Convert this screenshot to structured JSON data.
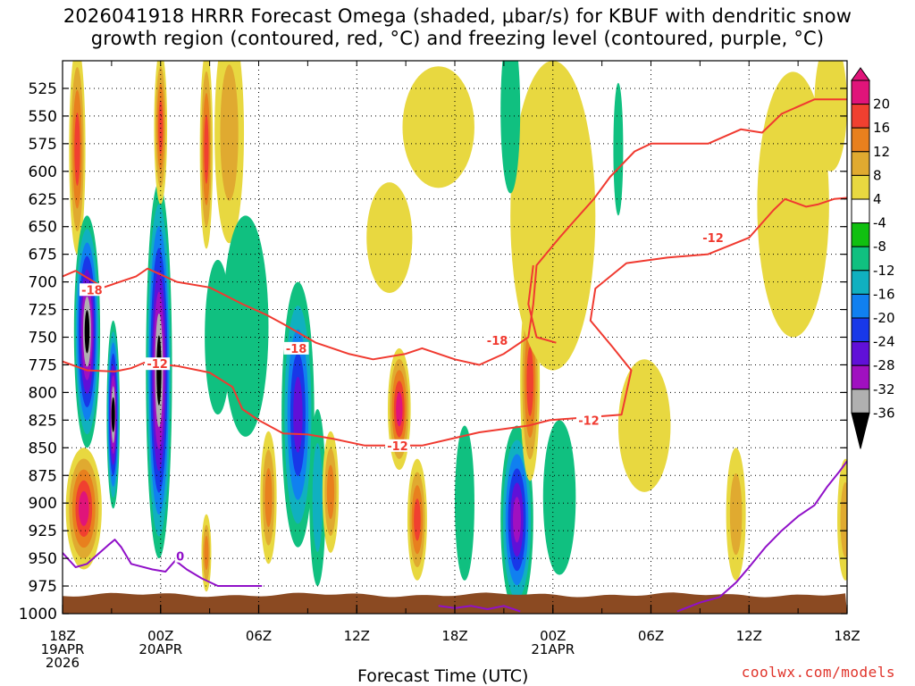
{
  "chart_data": {
    "type": "heatmap",
    "title_line1": "2026041918 HRRR Forecast Omega (shaded, μbar/s) for KBUF with dendritic snow",
    "title_line2": "growth region (contoured, red, °C) and freezing level (contoured, purple, °C)",
    "xlabel": "Forecast Time (UTC)",
    "credit": "coolwx.com/models",
    "x_range_hours": [
      0,
      48
    ],
    "x_ticks": [
      {
        "hour": 0,
        "lines": [
          "18Z",
          "19APR",
          "2026"
        ]
      },
      {
        "hour": 6,
        "lines": [
          "00Z",
          "20APR"
        ]
      },
      {
        "hour": 12,
        "lines": [
          "06Z"
        ]
      },
      {
        "hour": 18,
        "lines": [
          "12Z"
        ]
      },
      {
        "hour": 24,
        "lines": [
          "18Z"
        ]
      },
      {
        "hour": 30,
        "lines": [
          "00Z",
          "21APR"
        ]
      },
      {
        "hour": 36,
        "lines": [
          "06Z"
        ]
      },
      {
        "hour": 42,
        "lines": [
          "12Z"
        ]
      },
      {
        "hour": 48,
        "lines": [
          "18Z"
        ]
      }
    ],
    "y_range_mb": [
      500,
      1000
    ],
    "y_ticks": [
      525,
      550,
      575,
      600,
      625,
      650,
      675,
      700,
      725,
      750,
      775,
      800,
      825,
      850,
      875,
      900,
      925,
      950,
      975,
      1000
    ],
    "colorbar": {
      "labels": [
        "20",
        "16",
        "12",
        "8",
        "4",
        "-4",
        "-8",
        "-12",
        "-16",
        "-20",
        "-24",
        "-28",
        "-32",
        "-36"
      ],
      "colors": [
        "#e0147a",
        "#f04030",
        "#e8801e",
        "#e0aa30",
        "#e8d840",
        "#ffffff",
        "#10c010",
        "#10c080",
        "#10b0c0",
        "#1080f0",
        "#1838e8",
        "#6010d8",
        "#a010c0",
        "#b0b0b0",
        "#000000"
      ]
    },
    "omega_features": [
      {
        "hour": 0.9,
        "mb": 580,
        "dh": 0.5,
        "dm": 95,
        "level": 16
      },
      {
        "hour": 1.5,
        "mb": 745,
        "dh": 0.8,
        "dm": 105,
        "level": -36
      },
      {
        "hour": 3.1,
        "mb": 820,
        "dh": 0.4,
        "dm": 85,
        "level": -36
      },
      {
        "hour": 1.3,
        "mb": 905,
        "dh": 1.1,
        "dm": 55,
        "level": 20
      },
      {
        "hour": 5.9,
        "mb": 780,
        "dh": 0.8,
        "dm": 170,
        "level": -36
      },
      {
        "hour": 6.0,
        "mb": 560,
        "dh": 0.4,
        "dm": 70,
        "level": 16
      },
      {
        "hour": 8.8,
        "mb": 580,
        "dh": 0.4,
        "dm": 90,
        "level": 16
      },
      {
        "hour": 10.2,
        "mb": 565,
        "dh": 0.9,
        "dm": 100,
        "level": 8
      },
      {
        "hour": 9.5,
        "mb": 750,
        "dh": 0.8,
        "dm": 70,
        "level": -8
      },
      {
        "hour": 11.2,
        "mb": 740,
        "dh": 1.4,
        "dm": 100,
        "level": -8
      },
      {
        "hour": 14.4,
        "mb": 820,
        "dh": 1.0,
        "dm": 120,
        "level": -24
      },
      {
        "hour": 15.6,
        "mb": 895,
        "dh": 0.5,
        "dm": 80,
        "level": -12
      },
      {
        "hour": 12.6,
        "mb": 895,
        "dh": 0.5,
        "dm": 60,
        "level": 12
      },
      {
        "hour": 16.4,
        "mb": 890,
        "dh": 0.5,
        "dm": 55,
        "level": 12
      },
      {
        "hour": 8.8,
        "mb": 945,
        "dh": 0.3,
        "dm": 35,
        "level": 12
      },
      {
        "hour": 20.6,
        "mb": 815,
        "dh": 0.7,
        "dm": 55,
        "level": 20
      },
      {
        "hour": 21.7,
        "mb": 915,
        "dh": 0.6,
        "dm": 55,
        "level": 16
      },
      {
        "hour": 23.0,
        "mb": 560,
        "dh": 2.2,
        "dm": 55,
        "level": 4
      },
      {
        "hour": 20.0,
        "mb": 660,
        "dh": 1.4,
        "dm": 50,
        "level": 4
      },
      {
        "hour": 24.6,
        "mb": 900,
        "dh": 0.6,
        "dm": 70,
        "level": -8
      },
      {
        "hour": 27.8,
        "mb": 915,
        "dh": 1.0,
        "dm": 85,
        "level": -28
      },
      {
        "hour": 28.6,
        "mb": 790,
        "dh": 0.6,
        "dm": 90,
        "level": 16
      },
      {
        "hour": 30.4,
        "mb": 895,
        "dh": 1.0,
        "dm": 70,
        "level": -8
      },
      {
        "hour": 30.0,
        "mb": 640,
        "dh": 2.6,
        "dm": 140,
        "level": 4
      },
      {
        "hour": 27.4,
        "mb": 545,
        "dh": 0.6,
        "dm": 75,
        "level": -8
      },
      {
        "hour": 34.0,
        "mb": 580,
        "dh": 0.3,
        "dm": 60,
        "level": -8
      },
      {
        "hour": 44.7,
        "mb": 630,
        "dh": 2.2,
        "dm": 120,
        "level": 4
      },
      {
        "hour": 47.0,
        "mb": 540,
        "dh": 1.0,
        "dm": 60,
        "level": 4
      },
      {
        "hour": 41.2,
        "mb": 910,
        "dh": 0.6,
        "dm": 60,
        "level": 8
      },
      {
        "hour": 47.9,
        "mb": 915,
        "dh": 0.5,
        "dm": 55,
        "level": 8
      },
      {
        "hour": 35.6,
        "mb": 830,
        "dh": 1.6,
        "dm": 60,
        "level": 4
      }
    ],
    "dgz_contours": [
      {
        "label": "-18",
        "label_at": [
          1.8,
          707
        ],
        "points": [
          [
            0,
            695
          ],
          [
            0.8,
            690
          ],
          [
            2.5,
            705
          ],
          [
            4.5,
            695
          ],
          [
            5.2,
            688
          ],
          [
            7,
            700
          ],
          [
            9,
            705
          ],
          [
            11,
            720
          ],
          [
            12.5,
            730
          ],
          [
            13.5,
            738
          ],
          [
            15.5,
            755
          ],
          [
            17.5,
            765
          ],
          [
            19,
            770
          ],
          [
            21,
            765
          ],
          [
            22,
            760
          ],
          [
            24,
            770
          ],
          [
            25.5,
            775
          ],
          [
            27,
            765
          ],
          [
            28.5,
            750
          ],
          [
            28.8,
            720
          ],
          [
            29,
            685
          ],
          [
            30.4,
            660
          ],
          [
            31.3,
            645
          ],
          [
            32.5,
            625
          ],
          [
            33.5,
            605
          ],
          [
            35,
            582
          ],
          [
            36,
            575
          ],
          [
            39.5,
            575
          ],
          [
            41.5,
            562
          ],
          [
            42.8,
            565
          ],
          [
            44,
            548
          ],
          [
            46,
            535
          ],
          [
            48,
            535
          ]
        ]
      },
      {
        "label": "-18",
        "label_at": [
          14.3,
          760
        ],
        "points": [
          [
            28.8,
            685
          ],
          [
            28.5,
            720
          ],
          [
            29,
            750
          ],
          [
            30.2,
            755
          ]
        ]
      },
      {
        "label": "-18",
        "label_at": [
          26.6,
          753
        ],
        "points": []
      },
      {
        "label": "-12",
        "label_at": [
          5.8,
          774
        ],
        "points": [
          [
            0,
            772
          ],
          [
            1.5,
            780
          ],
          [
            3.2,
            781
          ],
          [
            4.2,
            778
          ],
          [
            5,
            773
          ],
          [
            7,
            776
          ],
          [
            9,
            782
          ],
          [
            10.4,
            795
          ],
          [
            11,
            815
          ],
          [
            12,
            825
          ],
          [
            13.5,
            837
          ],
          [
            15,
            838
          ],
          [
            16.6,
            842
          ],
          [
            18.5,
            848
          ],
          [
            22,
            848
          ],
          [
            25.5,
            836
          ],
          [
            28.5,
            830
          ],
          [
            29.8,
            825
          ],
          [
            32.5,
            822
          ],
          [
            34.2,
            820
          ],
          [
            34.8,
            780
          ],
          [
            33.6,
            758
          ],
          [
            32.3,
            735
          ],
          [
            32.6,
            706
          ],
          [
            34.5,
            683
          ],
          [
            37,
            678
          ],
          [
            39.5,
            675
          ],
          [
            42,
            660
          ],
          [
            43.5,
            635
          ],
          [
            44.2,
            625
          ],
          [
            45.5,
            632
          ],
          [
            46.2,
            630
          ],
          [
            47.2,
            625
          ],
          [
            48,
            624
          ]
        ]
      },
      {
        "label": "-12",
        "label_at": [
          20.5,
          848
        ],
        "points": []
      },
      {
        "label": "-12",
        "label_at": [
          39.8,
          660
        ],
        "points": []
      },
      {
        "label": "-12",
        "label_at": [
          32.2,
          825
        ],
        "points": []
      }
    ],
    "freezing_contours": [
      {
        "label": "0",
        "label_at": [
          7.2,
          948
        ],
        "points": [
          [
            0,
            945
          ],
          [
            0.8,
            958
          ],
          [
            1.5,
            955
          ],
          [
            2.8,
            938
          ],
          [
            3.2,
            933
          ],
          [
            3.6,
            940
          ],
          [
            4.2,
            955
          ],
          [
            5.5,
            960
          ],
          [
            6.3,
            962
          ],
          [
            6.9,
            952
          ],
          [
            7.6,
            960
          ],
          [
            8.5,
            968
          ],
          [
            9.5,
            975
          ],
          [
            11,
            975
          ],
          [
            12.2,
            975
          ]
        ]
      },
      {
        "label": "",
        "label_at": [
          0,
          0
        ],
        "points": [
          [
            23,
            993
          ],
          [
            24,
            995
          ],
          [
            25,
            993
          ],
          [
            26,
            996
          ],
          [
            27,
            993
          ],
          [
            28,
            998
          ]
        ]
      },
      {
        "label": "",
        "label_at": [
          0,
          0
        ],
        "points": [
          [
            37.6,
            998
          ],
          [
            39,
            990
          ],
          [
            40.2,
            985
          ],
          [
            41.2,
            972
          ],
          [
            42,
            958
          ],
          [
            43,
            940
          ],
          [
            44,
            925
          ],
          [
            45,
            912
          ],
          [
            46,
            902
          ],
          [
            46.8,
            885
          ],
          [
            47.5,
            872
          ],
          [
            48,
            862
          ]
        ]
      }
    ],
    "ground_mb": 983
  }
}
